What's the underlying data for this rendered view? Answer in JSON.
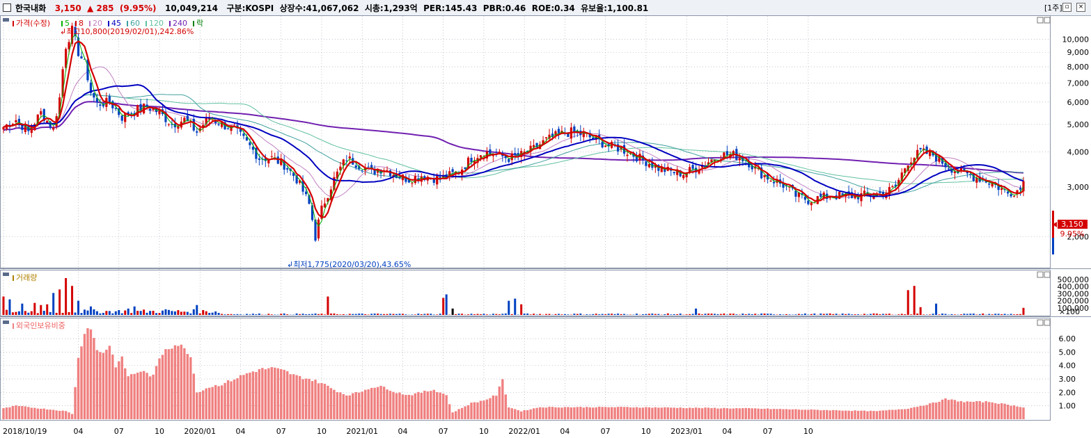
{
  "header": {
    "name": "한국내화",
    "price": "3,150",
    "arrow": "▲",
    "change": "285",
    "change_pct": "(9.95%)",
    "volume": "10,049,214",
    "market": "구분:KOSPI",
    "shares": "상장수:41,067,062",
    "mcap": "시총:1,293억",
    "per": "PER:145.43",
    "pbr": "PBR:0.46",
    "roe": "ROE:0.34",
    "reserve": "유보율:1,100.81",
    "period": "[1주]"
  },
  "legend": {
    "price": "가격(수정)",
    "ma": [
      {
        "label": "5",
        "color": "#00b000"
      },
      {
        "label": "8",
        "color": "#d40000"
      },
      {
        "label": "20",
        "color": "#c080c0"
      },
      {
        "label": "45",
        "color": "#0000c0"
      },
      {
        "label": "60",
        "color": "#40a0a0"
      },
      {
        "label": "120",
        "color": "#60c0a0"
      },
      {
        "label": "240",
        "color": "#7020b0"
      }
    ],
    "fall": "락",
    "volume": "거래량",
    "foreign": "외국인보유비중"
  },
  "annotations": {
    "high": "최고10,800(2019/02/01),242.86%",
    "low": "최저1,775(2020/03/20),43.65%",
    "last_price": "3,150",
    "last_pct": "9.95%"
  },
  "colors": {
    "up": "#d40000",
    "down": "#0040c0",
    "ma8": "#d40000",
    "ma45": "#0000c0",
    "ma240": "#7020b0",
    "foreign_bar": "#f08080",
    "grid": "#9aa0b0"
  },
  "chart_data": [
    {
      "type": "candlestick",
      "title": "가격(수정)",
      "y_axis": "log",
      "ylim": [
        1600,
        11500
      ],
      "y_ticks": [
        "2,000",
        "3,000",
        "4,000",
        "5,000",
        "6,000",
        "7,000",
        "8,000",
        "9,000",
        "10,000"
      ],
      "x_ticks": [
        "2018/10/19",
        "04",
        "07",
        "10",
        "2020/01",
        "04",
        "07",
        "10",
        "2021/01",
        "04",
        "07",
        "10",
        "2022/01",
        "04",
        "07",
        "10",
        "2023/01",
        "04",
        "07",
        "10"
      ],
      "price_keypoints": [
        [
          0,
          4900
        ],
        [
          4,
          5200
        ],
        [
          8,
          4700
        ],
        [
          12,
          5500
        ],
        [
          16,
          4800
        ],
        [
          18,
          6200
        ],
        [
          20,
          9500
        ],
        [
          22,
          10800
        ],
        [
          24,
          9000
        ],
        [
          26,
          8200
        ],
        [
          28,
          6500
        ],
        [
          30,
          5900
        ],
        [
          34,
          6000
        ],
        [
          38,
          5300
        ],
        [
          42,
          5600
        ],
        [
          46,
          5800
        ],
        [
          50,
          5500
        ],
        [
          54,
          5000
        ],
        [
          58,
          5200
        ],
        [
          62,
          4700
        ],
        [
          66,
          5300
        ],
        [
          70,
          5000
        ],
        [
          74,
          4800
        ],
        [
          78,
          4300
        ],
        [
          82,
          3800
        ],
        [
          86,
          3800
        ],
        [
          90,
          3600
        ],
        [
          94,
          3200
        ],
        [
          98,
          2600
        ],
        [
          100,
          2000
        ],
        [
          102,
          2500
        ],
        [
          106,
          3200
        ],
        [
          110,
          3800
        ],
        [
          114,
          3600
        ],
        [
          118,
          3400
        ],
        [
          122,
          3500
        ],
        [
          126,
          3300
        ],
        [
          130,
          3200
        ],
        [
          134,
          3300
        ],
        [
          140,
          3200
        ],
        [
          146,
          3400
        ],
        [
          150,
          3800
        ],
        [
          154,
          4000
        ],
        [
          158,
          3900
        ],
        [
          162,
          3800
        ],
        [
          166,
          3900
        ],
        [
          170,
          4100
        ],
        [
          174,
          4400
        ],
        [
          178,
          4600
        ],
        [
          182,
          4700
        ],
        [
          186,
          4600
        ],
        [
          190,
          4400
        ],
        [
          194,
          4200
        ],
        [
          198,
          4100
        ],
        [
          202,
          3900
        ],
        [
          206,
          3700
        ],
        [
          210,
          3500
        ],
        [
          214,
          3400
        ],
        [
          218,
          3350
        ],
        [
          222,
          3500
        ],
        [
          226,
          3700
        ],
        [
          230,
          3900
        ],
        [
          234,
          3900
        ],
        [
          238,
          3750
        ],
        [
          242,
          3400
        ],
        [
          246,
          3200
        ],
        [
          250,
          3050
        ],
        [
          254,
          2800
        ],
        [
          258,
          2700
        ],
        [
          262,
          2750
        ],
        [
          266,
          2800
        ],
        [
          270,
          2780
        ],
        [
          274,
          2800
        ],
        [
          278,
          2820
        ],
        [
          282,
          2850
        ],
        [
          286,
          3000
        ],
        [
          290,
          3700
        ],
        [
          294,
          4000
        ],
        [
          298,
          3900
        ],
        [
          302,
          3600
        ],
        [
          306,
          3400
        ],
        [
          310,
          3300
        ],
        [
          314,
          3200
        ],
        [
          318,
          3050
        ],
        [
          322,
          2850
        ],
        [
          326,
          2950
        ],
        [
          327,
          3150
        ]
      ],
      "last_close": 3150
    },
    {
      "type": "bar",
      "title": "거래량",
      "y_ticks": [
        "100,000",
        "200,000",
        "300,000",
        "400,000",
        "500,000"
      ],
      "y_unit": "×100",
      "volume_spikes": [
        [
          0,
          260
        ],
        [
          2,
          220
        ],
        [
          6,
          160
        ],
        [
          10,
          170
        ],
        [
          12,
          140
        ],
        [
          14,
          150
        ],
        [
          16,
          310
        ],
        [
          18,
          360
        ],
        [
          20,
          520
        ],
        [
          22,
          410
        ],
        [
          24,
          200
        ],
        [
          28,
          120
        ],
        [
          40,
          90
        ],
        [
          42,
          120
        ],
        [
          52,
          80
        ],
        [
          62,
          140
        ],
        [
          104,
          260
        ],
        [
          141,
          240
        ],
        [
          142,
          290
        ],
        [
          144,
          90
        ],
        [
          162,
          200
        ],
        [
          164,
          230
        ],
        [
          166,
          150
        ],
        [
          222,
          90
        ],
        [
          290,
          350
        ],
        [
          292,
          410
        ],
        [
          294,
          110
        ],
        [
          299,
          160
        ],
        [
          327,
          100
        ]
      ]
    },
    {
      "type": "bar",
      "title": "외국인보유비중",
      "y_ticks": [
        "1.00",
        "2.00",
        "3.00",
        "4.00",
        "5.00",
        "6.00"
      ],
      "keypoints": [
        [
          0,
          0.8
        ],
        [
          4,
          1.0
        ],
        [
          8,
          0.9
        ],
        [
          12,
          0.8
        ],
        [
          16,
          0.7
        ],
        [
          20,
          0.6
        ],
        [
          22,
          0.4
        ],
        [
          24,
          4.5
        ],
        [
          26,
          6.6
        ],
        [
          28,
          6.9
        ],
        [
          30,
          5.1
        ],
        [
          32,
          5.0
        ],
        [
          34,
          5.5
        ],
        [
          36,
          4.0
        ],
        [
          38,
          4.5
        ],
        [
          40,
          3.2
        ],
        [
          44,
          3.6
        ],
        [
          48,
          3.2
        ],
        [
          50,
          4.5
        ],
        [
          52,
          5.3
        ],
        [
          56,
          5.6
        ],
        [
          60,
          4.8
        ],
        [
          62,
          2.0
        ],
        [
          66,
          2.4
        ],
        [
          70,
          2.6
        ],
        [
          74,
          3.0
        ],
        [
          78,
          3.4
        ],
        [
          82,
          3.7
        ],
        [
          86,
          3.8
        ],
        [
          90,
          3.6
        ],
        [
          94,
          3.2
        ],
        [
          98,
          3.0
        ],
        [
          102,
          2.7
        ],
        [
          106,
          2.2
        ],
        [
          110,
          1.8
        ],
        [
          114,
          2.0
        ],
        [
          118,
          2.4
        ],
        [
          122,
          2.4
        ],
        [
          126,
          2.0
        ],
        [
          130,
          1.8
        ],
        [
          134,
          2.0
        ],
        [
          138,
          2.2
        ],
        [
          142,
          1.8
        ],
        [
          144,
          0.5
        ],
        [
          150,
          1.2
        ],
        [
          154,
          1.4
        ],
        [
          158,
          1.8
        ],
        [
          160,
          2.9
        ],
        [
          162,
          0.9
        ],
        [
          166,
          0.6
        ],
        [
          172,
          0.9
        ],
        [
          200,
          0.9
        ],
        [
          240,
          0.8
        ],
        [
          280,
          0.6
        ],
        [
          290,
          0.8
        ],
        [
          294,
          1.0
        ],
        [
          298,
          1.2
        ],
        [
          302,
          1.5
        ],
        [
          308,
          1.3
        ],
        [
          316,
          1.3
        ],
        [
          327,
          0.9
        ]
      ]
    }
  ]
}
